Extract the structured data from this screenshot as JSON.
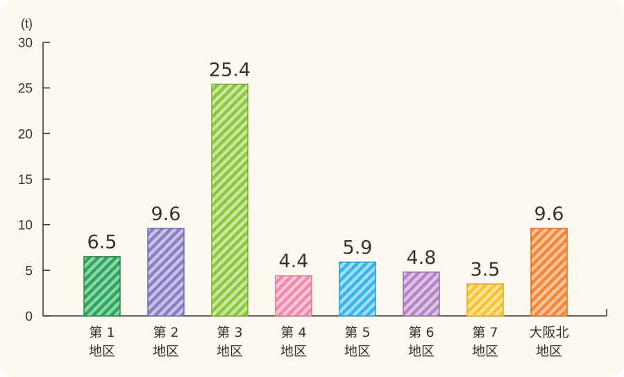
{
  "chart_data": {
    "type": "bar",
    "ylabel": "(t)",
    "ylim": [
      0,
      30
    ],
    "yticks": [
      0,
      5,
      10,
      15,
      20,
      25,
      30
    ],
    "grid": false,
    "categories": [
      [
        "第 1",
        "地区"
      ],
      [
        "第 2",
        "地区"
      ],
      [
        "第 3",
        "地区"
      ],
      [
        "第 4",
        "地区"
      ],
      [
        "第 5",
        "地区"
      ],
      [
        "第 6",
        "地区"
      ],
      [
        "第 7",
        "地区"
      ],
      [
        "大阪北",
        "地区"
      ]
    ],
    "values": [
      6.5,
      9.6,
      25.4,
      4.4,
      5.9,
      4.8,
      3.5,
      9.6
    ],
    "value_labels": [
      "6.5",
      "9.6",
      "25.4",
      "4.4",
      "5.9",
      "4.8",
      "3.5",
      "9.6"
    ],
    "bar_colors": [
      {
        "fill": "#2aa85e",
        "light": "#8fd3a6",
        "edge": "#1e8a4a"
      },
      {
        "fill": "#8a7fc4",
        "light": "#c9c3e8",
        "edge": "#6f64ad"
      },
      {
        "fill": "#8bc740",
        "light": "#cbe79f",
        "edge": "#6faa2a"
      },
      {
        "fill": "#f08aab",
        "light": "#f9c8d7",
        "edge": "#dc6e92"
      },
      {
        "fill": "#35b6ec",
        "light": "#a6dcf5",
        "edge": "#1f9bd3"
      },
      {
        "fill": "#b584c6",
        "light": "#dcc4e5",
        "edge": "#9a6aad"
      },
      {
        "fill": "#f9c22e",
        "light": "#fde39a",
        "edge": "#e4a80f"
      },
      {
        "fill": "#f3873a",
        "light": "#f9c39b",
        "edge": "#dd6d1f"
      }
    ]
  }
}
